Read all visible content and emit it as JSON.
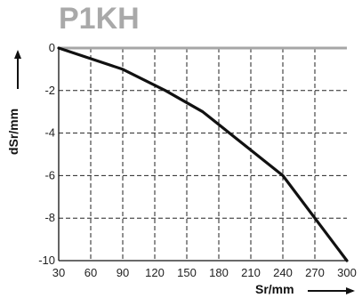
{
  "chart_data": {
    "type": "line",
    "title": "P1KH",
    "xlabel": "Sr/mm",
    "ylabel": "dSr/mm",
    "xlim": [
      30,
      300
    ],
    "ylim": [
      -10,
      0
    ],
    "xticks": [
      30,
      60,
      90,
      120,
      150,
      180,
      210,
      240,
      270,
      300
    ],
    "yticks": [
      0,
      -2,
      -4,
      -6,
      -8,
      -10
    ],
    "grid": true,
    "series": [
      {
        "x": [
          30,
          90,
          130,
          165,
          240,
          300
        ],
        "y": [
          0,
          -1,
          -2,
          -3,
          -6,
          -10
        ]
      }
    ],
    "colors": {
      "title": "#a9a9a9",
      "line": "#111111",
      "zero_line": "#a6a6a6",
      "grid": "#222222"
    }
  }
}
